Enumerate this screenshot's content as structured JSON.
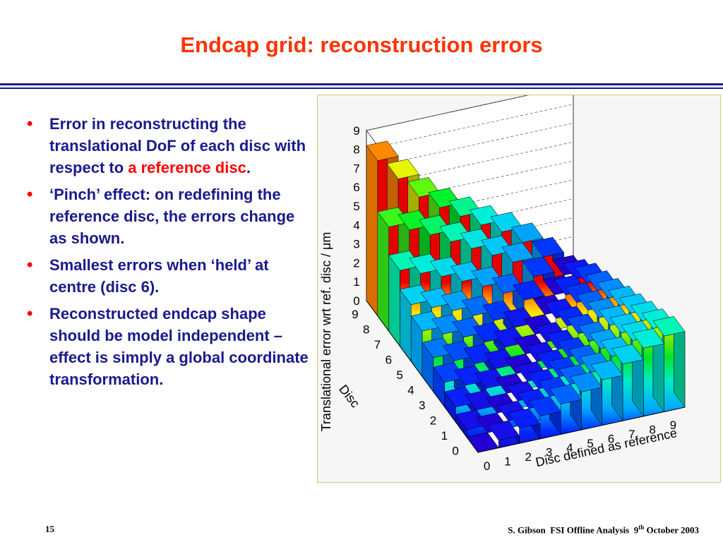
{
  "slide": {
    "title": "Endcap grid: reconstruction errors"
  },
  "bullets": [
    {
      "text": "Error in reconstructing the translational DoF of each disc with respect to ",
      "highlight": "a reference disc",
      "after": "."
    },
    {
      "text": "‘Pinch’ effect: on redefining the reference disc, the errors change as shown."
    },
    {
      "text": "Smallest errors when ‘held’ at centre (disc 6)."
    },
    {
      "text": "Reconstructed endcap shape should be model independent – effect is simply a global coordinate transformation."
    }
  ],
  "colors": {
    "title": "#ff3300",
    "body_text": "#1a1a8c",
    "highlight": "#ff0000",
    "rule": "#1a1a8c",
    "figure_border": "#d7cc72",
    "figure_background": "#f6f6f6"
  },
  "footer": {
    "page_number": "15",
    "author": "S. Gibson",
    "event": "FSI Offline Analysis",
    "date_day": "9",
    "date_suffix": "th",
    "date_rest": "October 2003"
  },
  "chart_data": {
    "type": "lego3d",
    "xlabel": "Disc defined as reference",
    "ylabel": "Disc",
    "zlabel": "Translational error wrt ref. disc / μm",
    "x_ticks": [
      "0",
      "1",
      "2",
      "3",
      "4",
      "5",
      "6",
      "7",
      "8",
      "9"
    ],
    "y_ticks": [
      "0",
      "1",
      "2",
      "3",
      "4",
      "5",
      "6",
      "7",
      "8",
      "9"
    ],
    "z_ticks": [
      "0",
      "1",
      "2",
      "3",
      "4",
      "5",
      "6",
      "7",
      "8",
      "9"
    ],
    "zlim": [
      0,
      9
    ],
    "grid": true,
    "colormap": "rainbow (blue = low, red = high)",
    "values": [
      [
        0.0,
        0.4,
        0.8,
        1.2,
        1.6,
        2.0,
        2.4,
        3.0,
        3.6,
        4.0
      ],
      [
        0.4,
        0.0,
        0.4,
        0.8,
        1.2,
        1.6,
        2.0,
        2.6,
        3.2,
        3.6
      ],
      [
        0.8,
        0.4,
        0.0,
        0.4,
        0.8,
        1.2,
        1.6,
        2.2,
        2.8,
        3.2
      ],
      [
        1.3,
        0.9,
        0.5,
        0.0,
        0.4,
        0.8,
        1.2,
        1.8,
        2.4,
        2.8
      ],
      [
        1.8,
        1.4,
        1.0,
        0.5,
        0.0,
        0.4,
        0.8,
        1.4,
        2.0,
        2.4
      ],
      [
        2.4,
        2.0,
        1.6,
        1.1,
        0.6,
        0.0,
        0.4,
        1.0,
        1.6,
        2.0
      ],
      [
        3.0,
        2.6,
        2.2,
        1.7,
        1.2,
        0.6,
        0.0,
        0.6,
        1.2,
        1.6
      ],
      [
        4.0,
        3.6,
        3.2,
        2.7,
        2.2,
        1.6,
        1.0,
        0.0,
        0.8,
        1.2
      ],
      [
        5.5,
        5.1,
        4.6,
        4.0,
        3.4,
        2.8,
        2.2,
        1.2,
        0.0,
        0.6
      ],
      [
        8.2,
        7.0,
        5.8,
        5.0,
        4.3,
        3.6,
        3.0,
        2.2,
        1.2,
        0.0
      ]
    ]
  }
}
